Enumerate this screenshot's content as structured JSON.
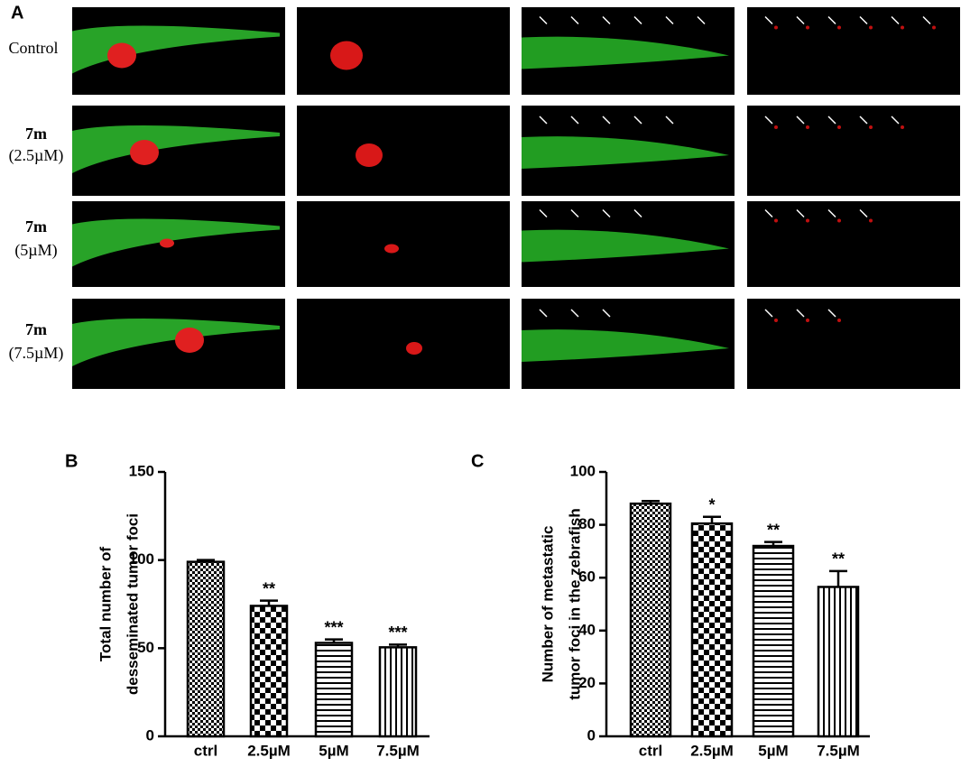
{
  "panel_a": {
    "label": "A",
    "rows": [
      {
        "name": "Control"
      },
      {
        "name": "7m",
        "dose": "(2.5µM)"
      },
      {
        "name": "7m",
        "dose": "(5µM)"
      },
      {
        "name": "7m",
        "dose": "(7.5µM)"
      }
    ]
  },
  "chart_data": [
    {
      "type": "bar",
      "panel_label": "B",
      "y_label": [
        "Total number of",
        "desseminated tumor foci"
      ],
      "categories": [
        "ctrl",
        "2.5µM",
        "5µM",
        "7.5µM"
      ],
      "values": [
        99,
        74,
        53,
        50.5
      ],
      "errors": [
        1,
        3,
        2,
        1.5
      ],
      "annotations": [
        null,
        "**",
        "***",
        "***"
      ],
      "patterns": [
        "fine-check",
        "check",
        "horizontal",
        "vertical"
      ],
      "color": "#000000",
      "ylim": [
        0,
        150
      ],
      "yticks": [
        0,
        50,
        100,
        150
      ]
    },
    {
      "type": "bar",
      "panel_label": "C",
      "y_label": [
        "Number of metastatic",
        "tumor foci in the zebrafish"
      ],
      "categories": [
        "ctrl",
        "2.5µM",
        "5µM",
        "7.5µM"
      ],
      "values": [
        88,
        80.5,
        72,
        56.5
      ],
      "errors": [
        1,
        2.5,
        1.5,
        6
      ],
      "annotations": [
        null,
        "*",
        "**",
        "**"
      ],
      "patterns": [
        "fine-check",
        "check",
        "horizontal",
        "vertical"
      ],
      "color": "#000000",
      "ylim": [
        0,
        100
      ],
      "yticks": [
        0,
        20,
        40,
        60,
        80,
        100
      ]
    }
  ]
}
